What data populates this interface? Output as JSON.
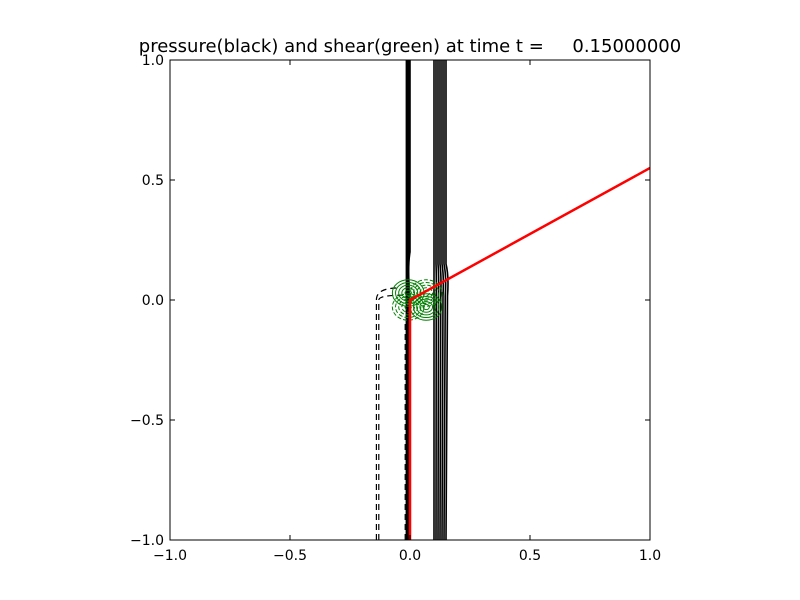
{
  "chart_data": {
    "type": "line",
    "title": "pressure(black) and shear(green) at time t =     0.15000000",
    "xlabel": "",
    "ylabel": "",
    "xlim": [
      -1.0,
      1.0
    ],
    "ylim": [
      -1.0,
      1.0
    ],
    "grid": false,
    "x_ticks": [
      -1.0,
      -0.5,
      0.0,
      0.5,
      1.0
    ],
    "y_ticks": [
      -1.0,
      -0.5,
      0.0,
      0.5,
      1.0
    ],
    "x_tick_labels": [
      "−1.0",
      "−0.5",
      "0.0",
      "0.5",
      "1.0"
    ],
    "y_tick_labels": [
      "−1.0",
      "−0.5",
      "0.0",
      "0.5",
      "1.0"
    ],
    "colors": {
      "pressure": "#000000",
      "shear": "#008000",
      "red_line": "#ff0000",
      "axes": "#000000",
      "background": "#ffffff"
    },
    "pressure_contours": {
      "solid_bands": [
        {
          "x_start": -0.015,
          "x_end": 0.0,
          "y_bottom": -1.0,
          "y_top": 1.0,
          "kink_y": 0.15
        },
        {
          "x_start": 0.1,
          "x_end": 0.15,
          "y_bottom": -1.0,
          "y_top": 1.0,
          "kink_y": 0.1
        }
      ],
      "dashed_lines": [
        {
          "x": -0.14,
          "y_bottom": -1.0,
          "y_top": 0.0,
          "curve_to": [
            -0.05,
            0.05
          ]
        },
        {
          "x": -0.13,
          "y_bottom": -1.0,
          "y_top": 0.0,
          "curve_to": [
            -0.03,
            0.02
          ]
        },
        {
          "x": -0.02,
          "y_bottom": -1.0,
          "y_top": -0.1
        }
      ]
    },
    "shear_contours": {
      "center": [
        0.03,
        0.0
      ],
      "radii": [
        0.02,
        0.04,
        0.06,
        0.08,
        0.1
      ],
      "aspect": 1.2
    },
    "red_line": {
      "x": [
        0.0,
        0.0,
        1.0
      ],
      "y": [
        -1.0,
        0.0,
        0.55
      ]
    }
  }
}
